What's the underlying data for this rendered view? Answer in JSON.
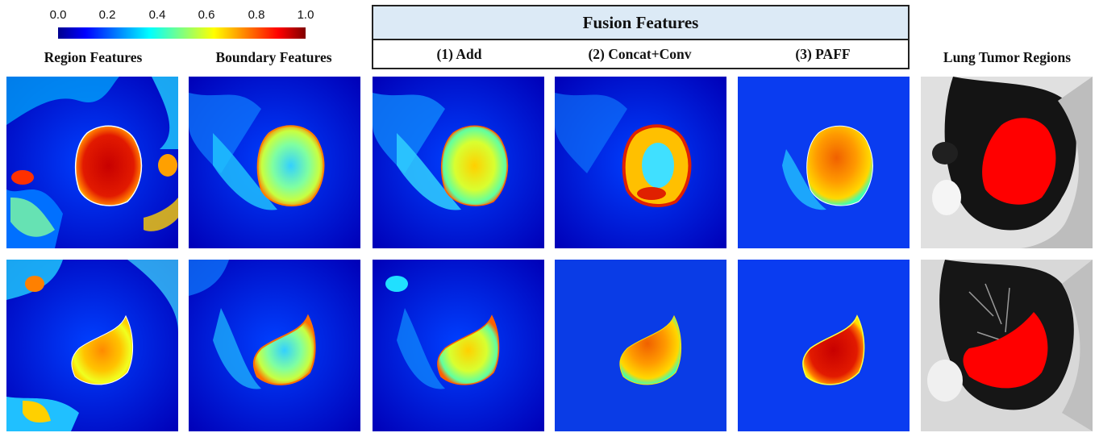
{
  "colorbar": {
    "ticks": [
      "0.0",
      "0.2",
      "0.4",
      "0.6",
      "0.8",
      "1.0"
    ],
    "colors": [
      "#00008f",
      "#0000ff",
      "#00ffff",
      "#ffff00",
      "#ff0000",
      "#800000"
    ]
  },
  "columns": {
    "region": "Region Features",
    "boundary": "Boundary Features",
    "lung": "Lung Tumor Regions"
  },
  "fusion": {
    "title": "Fusion Features",
    "add": "(1) Add",
    "concat": "(2) Concat+Conv",
    "paff": "(3) PAFF"
  },
  "rows": 2
}
